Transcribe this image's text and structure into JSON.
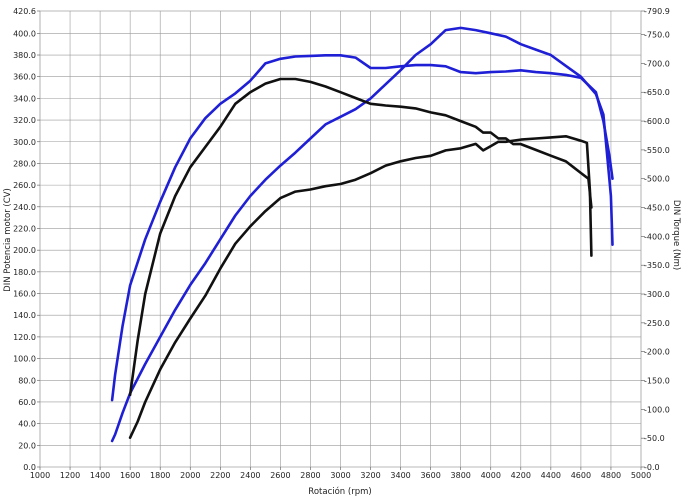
{
  "chart_data": {
    "type": "line",
    "title": "",
    "xlabel": "Rotación (rpm)",
    "ylabel": "DIN Potencia motor (CV)",
    "y2label": "DIN Torque (Nm)",
    "xlim": [
      1000,
      5000
    ],
    "ylim": [
      0,
      420.6
    ],
    "y2lim": [
      0,
      790.9
    ],
    "grid": true,
    "x_ticks": [
      1000,
      1200,
      1400,
      1600,
      1800,
      2000,
      2200,
      2400,
      2600,
      2800,
      3000,
      3200,
      3400,
      3600,
      3800,
      4000,
      4200,
      4400,
      4600,
      4800,
      5000
    ],
    "y_ticks": [
      0.0,
      20.0,
      40.0,
      60.0,
      80.0,
      100.0,
      120.0,
      140.0,
      160.0,
      180.0,
      200.0,
      220.0,
      240.0,
      260.0,
      280.0,
      300.0,
      320.0,
      340.0,
      360.0,
      380.0,
      400.0,
      420.6
    ],
    "y2_ticks": [
      0.0,
      50.0,
      100.0,
      150.0,
      200.0,
      250.0,
      300.0,
      350.0,
      400.0,
      450.0,
      500.0,
      550.0,
      600.0,
      650.0,
      700.0,
      750.0,
      790.9
    ],
    "series": [
      {
        "color": "#1f1fd6",
        "axis": "right",
        "kind": "torque",
        "x": [
          1480,
          1500,
          1550,
          1600,
          1700,
          1800,
          1900,
          2000,
          2100,
          2200,
          2300,
          2400,
          2500,
          2600,
          2700,
          2800,
          2900,
          3000,
          3100,
          3200,
          3300,
          3400,
          3500,
          3600,
          3700,
          3800,
          3900,
          4000,
          4100,
          4200,
          4300,
          4400,
          4500,
          4600,
          4700,
          4750,
          4790,
          4810
        ],
        "y": [
          116,
          160,
          245,
          315,
          395,
          460,
          520,
          570,
          605,
          630,
          648,
          670,
          700,
          708,
          712,
          713,
          714,
          714,
          710,
          692,
          692,
          695,
          697,
          697,
          695,
          685,
          683,
          685,
          686,
          688,
          685,
          683,
          680,
          675,
          650,
          600,
          540,
          500
        ]
      },
      {
        "color": "#1f1fd6",
        "axis": "left",
        "kind": "power",
        "x": [
          1480,
          1500,
          1550,
          1600,
          1700,
          1800,
          1900,
          2000,
          2100,
          2200,
          2300,
          2400,
          2500,
          2600,
          2700,
          2800,
          2900,
          3000,
          3100,
          3200,
          3300,
          3400,
          3500,
          3600,
          3700,
          3800,
          3900,
          4000,
          4100,
          4200,
          4300,
          4400,
          4500,
          4600,
          4700,
          4750,
          4800,
          4810
        ],
        "y": [
          24,
          30,
          50,
          68,
          95,
          120,
          145,
          168,
          188,
          210,
          232,
          250,
          265,
          278,
          290,
          303,
          316,
          323,
          330,
          340,
          353,
          366,
          380,
          390,
          403,
          405,
          403,
          400,
          397,
          390,
          385,
          380,
          370,
          360,
          344,
          325,
          250,
          205
        ]
      },
      {
        "color": "#111111",
        "axis": "right",
        "kind": "torque",
        "x": [
          1600,
          1650,
          1700,
          1800,
          1900,
          2000,
          2100,
          2200,
          2300,
          2400,
          2500,
          2600,
          2700,
          2800,
          2900,
          3000,
          3100,
          3200,
          3300,
          3400,
          3500,
          3600,
          3700,
          3800,
          3900,
          3950,
          4000,
          4050,
          4100,
          4150,
          4200,
          4300,
          4400,
          4500,
          4550,
          4600,
          4650,
          4670
        ],
        "y": [
          125,
          220,
          300,
          405,
          470,
          520,
          555,
          590,
          630,
          650,
          665,
          673,
          673,
          668,
          660,
          650,
          640,
          630,
          627,
          625,
          622,
          615,
          610,
          600,
          590,
          580,
          580,
          570,
          570,
          560,
          560,
          550,
          540,
          530,
          520,
          510,
          500,
          450
        ]
      },
      {
        "color": "#111111",
        "axis": "left",
        "kind": "power",
        "x": [
          1600,
          1650,
          1700,
          1800,
          1900,
          2000,
          2100,
          2200,
          2300,
          2400,
          2500,
          2600,
          2700,
          2800,
          2900,
          3000,
          3100,
          3200,
          3300,
          3400,
          3500,
          3600,
          3700,
          3800,
          3900,
          3950,
          4000,
          4050,
          4100,
          4200,
          4300,
          4400,
          4500,
          4600,
          4640,
          4660,
          4670
        ],
        "y": [
          27,
          42,
          60,
          90,
          115,
          137,
          158,
          183,
          206,
          222,
          236,
          248,
          254,
          256,
          259,
          261,
          265,
          271,
          278,
          282,
          285,
          287,
          292,
          294,
          298,
          292,
          296,
          300,
          300,
          302,
          303,
          304,
          305,
          301,
          299,
          255,
          195
        ]
      }
    ]
  }
}
